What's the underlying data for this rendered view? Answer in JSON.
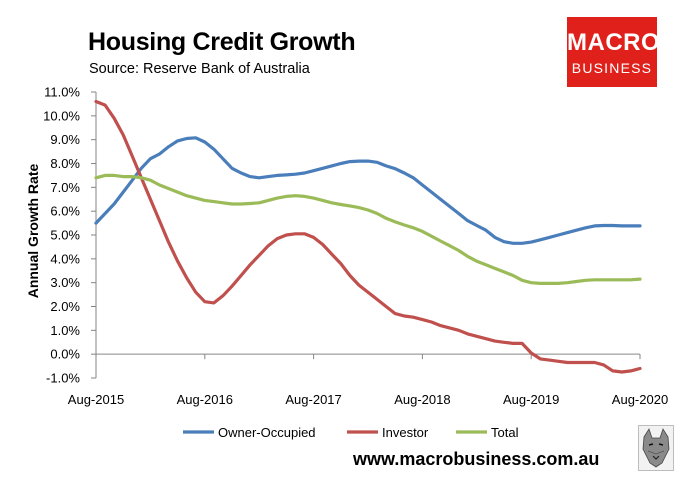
{
  "header": {
    "title": "Housing Credit Growth",
    "source": "Source: Reserve Bank of Australia"
  },
  "brand": {
    "logo_line1": "MACRO",
    "logo_line2": "BUSINESS",
    "url": "www.macrobusiness.com.au",
    "logo_color": "#e0211b"
  },
  "chart_data": {
    "type": "line",
    "title": "Housing Credit Growth",
    "ylabel": "Annual Growth Rate",
    "xlabel": "",
    "ylim": [
      -1.0,
      11.0
    ],
    "y_ticks": [
      "11.0%",
      "10.0%",
      "9.0%",
      "8.0%",
      "7.0%",
      "6.0%",
      "5.0%",
      "4.0%",
      "3.0%",
      "2.0%",
      "1.0%",
      "0.0%",
      "-1.0%"
    ],
    "x_tick_labels": [
      "Aug-2015",
      "Aug-2016",
      "Aug-2017",
      "Aug-2018",
      "Aug-2019",
      "Aug-2020"
    ],
    "grid": false,
    "legend_position": "bottom",
    "x_months": [
      0,
      1,
      2,
      3,
      4,
      5,
      6,
      7,
      8,
      9,
      10,
      11,
      12,
      13,
      14,
      15,
      16,
      17,
      18,
      19,
      20,
      21,
      22,
      23,
      24,
      25,
      26,
      27,
      28,
      29,
      30,
      31,
      32,
      33,
      34,
      35,
      36,
      37,
      38,
      39,
      40,
      41,
      42,
      43,
      44,
      45,
      46,
      47,
      48,
      49,
      50,
      51,
      52,
      53,
      54,
      55,
      56,
      57,
      58,
      59,
      60
    ],
    "series": [
      {
        "name": "Owner-Occupied",
        "color": "#4a7ebb",
        "values": [
          5.5,
          5.9,
          6.3,
          6.8,
          7.3,
          7.8,
          8.2,
          8.4,
          8.7,
          8.95,
          9.05,
          9.08,
          8.9,
          8.6,
          8.2,
          7.8,
          7.6,
          7.45,
          7.4,
          7.45,
          7.5,
          7.52,
          7.55,
          7.6,
          7.7,
          7.8,
          7.9,
          8.0,
          8.08,
          8.1,
          8.1,
          8.05,
          7.9,
          7.78,
          7.6,
          7.4,
          7.1,
          6.8,
          6.5,
          6.2,
          5.9,
          5.6,
          5.4,
          5.2,
          4.9,
          4.72,
          4.65,
          4.65,
          4.7,
          4.8,
          4.9,
          5.0,
          5.1,
          5.2,
          5.3,
          5.38,
          5.4,
          5.4,
          5.38,
          5.38,
          5.38
        ]
      },
      {
        "name": "Investor",
        "color": "#c0504d",
        "values": [
          10.6,
          10.45,
          9.9,
          9.2,
          8.3,
          7.4,
          6.5,
          5.6,
          4.7,
          3.9,
          3.2,
          2.6,
          2.2,
          2.15,
          2.45,
          2.85,
          3.3,
          3.75,
          4.15,
          4.55,
          4.85,
          5.0,
          5.05,
          5.05,
          4.9,
          4.6,
          4.2,
          3.8,
          3.3,
          2.9,
          2.6,
          2.3,
          2.0,
          1.7,
          1.6,
          1.55,
          1.45,
          1.35,
          1.2,
          1.1,
          1.0,
          0.85,
          0.75,
          0.65,
          0.55,
          0.5,
          0.45,
          0.45,
          0.05,
          -0.2,
          -0.25,
          -0.3,
          -0.35,
          -0.35,
          -0.35,
          -0.35,
          -0.45,
          -0.7,
          -0.75,
          -0.7,
          -0.6
        ]
      },
      {
        "name": "Total",
        "color": "#9bbb59",
        "values": [
          7.4,
          7.5,
          7.5,
          7.45,
          7.45,
          7.4,
          7.3,
          7.1,
          6.95,
          6.8,
          6.65,
          6.55,
          6.45,
          6.4,
          6.35,
          6.3,
          6.3,
          6.32,
          6.35,
          6.45,
          6.55,
          6.62,
          6.65,
          6.62,
          6.55,
          6.45,
          6.35,
          6.28,
          6.22,
          6.15,
          6.05,
          5.9,
          5.7,
          5.55,
          5.42,
          5.3,
          5.15,
          4.95,
          4.75,
          4.55,
          4.35,
          4.1,
          3.9,
          3.75,
          3.6,
          3.45,
          3.3,
          3.1,
          3.0,
          2.97,
          2.97,
          2.97,
          3.0,
          3.05,
          3.1,
          3.12,
          3.12,
          3.12,
          3.12,
          3.12,
          3.15
        ]
      }
    ]
  }
}
